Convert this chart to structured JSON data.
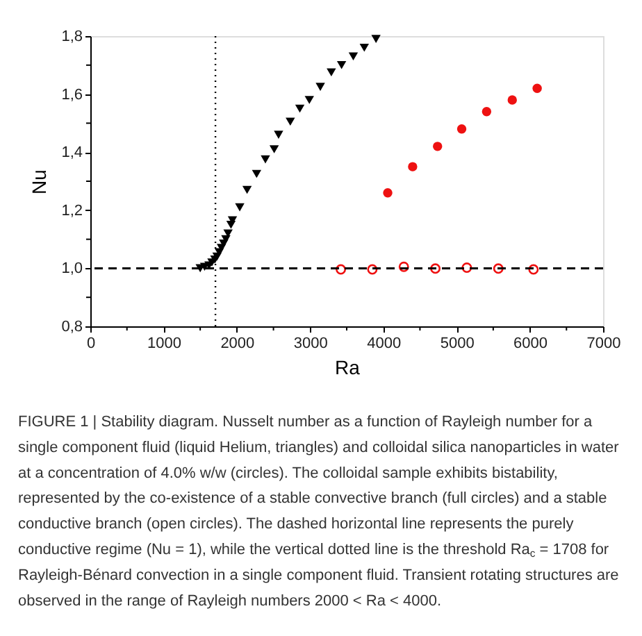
{
  "chart_data": {
    "type": "scatter",
    "xlabel": "Ra",
    "ylabel": "Nu",
    "xlim": [
      0,
      7000
    ],
    "ylim": [
      0.8,
      1.8
    ],
    "xticks": [
      0,
      {
        "value": 500,
        "label": null
      },
      1000,
      {
        "value": 1500,
        "label": null
      },
      2000,
      {
        "value": 2500,
        "label": null
      },
      3000,
      {
        "value": 3500,
        "label": null
      },
      4000,
      {
        "value": 4500,
        "label": null
      },
      5000,
      {
        "value": 5500,
        "label": null
      },
      6000,
      {
        "value": 6500,
        "label": null
      },
      7000
    ],
    "yticks": [
      {
        "value": 0.8,
        "label": "0,8"
      },
      {
        "value": 0.9,
        "label": null
      },
      {
        "value": 1.0,
        "label": "1,0"
      },
      {
        "value": 1.1,
        "label": null
      },
      {
        "value": 1.2,
        "label": "1,2"
      },
      {
        "value": 1.3,
        "label": null
      },
      {
        "value": 1.4,
        "label": "1,4"
      },
      {
        "value": 1.5,
        "label": null
      },
      {
        "value": 1.6,
        "label": "1,6"
      },
      {
        "value": 1.7,
        "label": null
      },
      {
        "value": 1.8,
        "label": "1,8"
      }
    ],
    "grid": false,
    "series": [
      {
        "color": "#000000",
        "marker": "triangle",
        "x": [
          1500,
          1560,
          1620,
          1660,
          1700,
          1730,
          1760,
          1790,
          1820,
          1850,
          1880,
          1920,
          1940,
          2040,
          2140,
          2270,
          2390,
          2510,
          2570,
          2730,
          2860,
          2990,
          3140,
          3290,
          3430,
          3590,
          3740,
          3900
        ],
        "values": [
          1.0,
          1.005,
          1.01,
          1.02,
          1.03,
          1.04,
          1.055,
          1.07,
          1.085,
          1.1,
          1.12,
          1.15,
          1.165,
          1.21,
          1.27,
          1.325,
          1.375,
          1.41,
          1.46,
          1.505,
          1.55,
          1.58,
          1.625,
          1.675,
          1.7,
          1.73,
          1.76,
          1.79
        ]
      },
      {
        "color": "#ee1111",
        "marker": "circle",
        "x": [
          4060,
          4400,
          4740,
          5070,
          5410,
          5760,
          6100
        ],
        "values": [
          1.26,
          1.35,
          1.42,
          1.48,
          1.54,
          1.58,
          1.62
        ]
      },
      {
        "color": "#ee1111",
        "marker": "circle",
        "x": [
          3420,
          3850,
          4280,
          4710,
          5140,
          5570,
          6050
        ],
        "values": [
          0.996,
          0.996,
          1.005,
          0.999,
          1.002,
          0.999,
          0.996
        ]
      }
    ],
    "ref_lines": [
      {
        "axis": "y",
        "value": 1.0,
        "line_style": "dashed",
        "color": "#000000"
      },
      {
        "axis": "x",
        "value": 1708,
        "line_style": "dotted",
        "color": "#000000"
      }
    ],
    "annotations": [
      "FIGURE 1 | Stability diagram. Nusselt number as a function of Rayleigh number for a single component fluid (liquid Helium, triangles) and colloidal silica nanoparticles in water at a concentration of 4.0% w/w (circles). The colloidal sample exhibits bistability, represented by the co-existence of a stable convective branch (full circles) and a stable conductive branch (open circles). The dashed horizontal line represents the purely conductive regime (Nu = 1), while the vertical dotted line is the threshold Ra$_{c}$ = 1708 for Rayleigh-Bénard convection in a single component fluid. Transient rotating structures are observed in the range of Rayleigh numbers 2000 < Ra < 4000."
    ]
  }
}
